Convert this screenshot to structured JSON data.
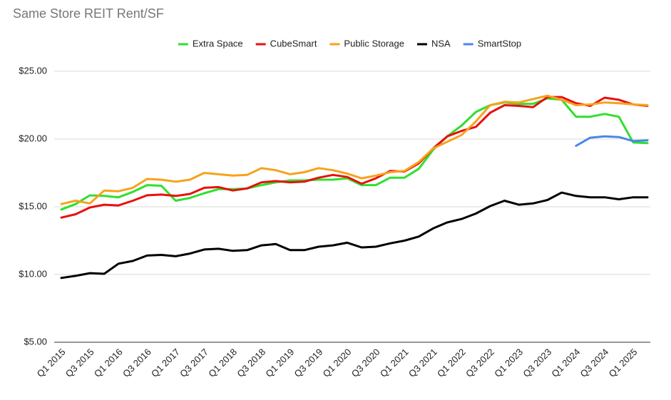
{
  "chart_data": {
    "type": "line",
    "title": "Same Store REIT Rent/SF",
    "categories": [
      "Q1 2015",
      null,
      "Q3 2015",
      null,
      "Q1 2016",
      null,
      "Q3 2016",
      null,
      "Q1 2017",
      null,
      "Q3 2017",
      null,
      "Q1 2018",
      null,
      "Q3 2018",
      null,
      "Q1 2019",
      null,
      "Q3 2019",
      null,
      "Q1 2020",
      null,
      "Q3 2020",
      null,
      "Q1 2021",
      null,
      "Q3 2021",
      null,
      "Q1 2022",
      null,
      "Q3 2022",
      null,
      "Q1 2023",
      null,
      "Q3 2023",
      null,
      "Q1 2024",
      null,
      "Q3 2024",
      null,
      "Q1 2025",
      null
    ],
    "series": [
      {
        "name": "Extra Space",
        "color": "#2ee02e",
        "values": [
          14.8,
          15.2,
          15.85,
          15.8,
          15.7,
          16.1,
          16.6,
          16.55,
          15.45,
          15.65,
          16.0,
          16.3,
          16.3,
          16.35,
          16.6,
          16.8,
          16.95,
          16.95,
          17.0,
          17.0,
          17.1,
          16.6,
          16.6,
          17.15,
          17.15,
          17.8,
          19.2,
          20.2,
          21.0,
          22.0,
          22.5,
          22.7,
          22.6,
          22.6,
          23.0,
          22.9,
          21.65,
          21.65,
          21.85,
          21.65,
          19.75,
          19.7
        ]
      },
      {
        "name": "CubeSmart",
        "color": "#e8100f",
        "values": [
          14.2,
          14.45,
          14.95,
          15.15,
          15.1,
          15.45,
          15.85,
          15.9,
          15.8,
          15.95,
          16.4,
          16.45,
          16.2,
          16.35,
          16.8,
          16.9,
          16.8,
          16.85,
          17.15,
          17.35,
          17.2,
          16.7,
          17.1,
          17.65,
          17.6,
          18.2,
          19.3,
          20.2,
          20.6,
          20.9,
          21.95,
          22.5,
          22.45,
          22.35,
          23.1,
          23.1,
          22.65,
          22.45,
          23.05,
          22.9,
          22.55,
          22.45
        ]
      },
      {
        "name": "Public Storage",
        "color": "#f7a21b",
        "values": [
          15.2,
          15.45,
          15.25,
          16.2,
          16.15,
          16.4,
          17.05,
          17.0,
          16.85,
          17.0,
          17.5,
          17.4,
          17.3,
          17.35,
          17.85,
          17.7,
          17.4,
          17.55,
          17.85,
          17.7,
          17.45,
          17.1,
          17.3,
          17.55,
          17.65,
          18.3,
          19.3,
          19.8,
          20.3,
          21.3,
          22.5,
          22.75,
          22.7,
          22.95,
          23.2,
          22.9,
          22.5,
          22.55,
          22.7,
          22.65,
          22.55,
          22.5
        ]
      },
      {
        "name": "NSA",
        "color": "#000000",
        "values": [
          9.75,
          9.9,
          10.1,
          10.05,
          10.8,
          11.0,
          11.4,
          11.45,
          11.35,
          11.55,
          11.85,
          11.9,
          11.75,
          11.8,
          12.15,
          12.25,
          11.8,
          11.8,
          12.05,
          12.15,
          12.35,
          12.0,
          12.05,
          12.3,
          12.5,
          12.8,
          13.4,
          13.85,
          14.1,
          14.5,
          15.05,
          15.45,
          15.15,
          15.25,
          15.5,
          16.05,
          15.8,
          15.7,
          15.7,
          15.55,
          15.7,
          15.7
        ]
      },
      {
        "name": "SmartStop",
        "color": "#4a86e8",
        "values": [
          null,
          null,
          null,
          null,
          null,
          null,
          null,
          null,
          null,
          null,
          null,
          null,
          null,
          null,
          null,
          null,
          null,
          null,
          null,
          null,
          null,
          null,
          null,
          null,
          null,
          null,
          null,
          null,
          null,
          null,
          null,
          null,
          null,
          null,
          null,
          null,
          19.5,
          20.1,
          20.2,
          20.15,
          19.85,
          19.9
        ]
      }
    ],
    "ylim": [
      5,
      25
    ],
    "yticks": [
      {
        "value": 5,
        "label": "$5.00"
      },
      {
        "value": 10,
        "label": "$10.00"
      },
      {
        "value": 15,
        "label": "$15.00"
      },
      {
        "value": 20,
        "label": "$20.00"
      },
      {
        "value": 25,
        "label": "$25.00"
      }
    ],
    "grid": true,
    "legend": "top"
  }
}
